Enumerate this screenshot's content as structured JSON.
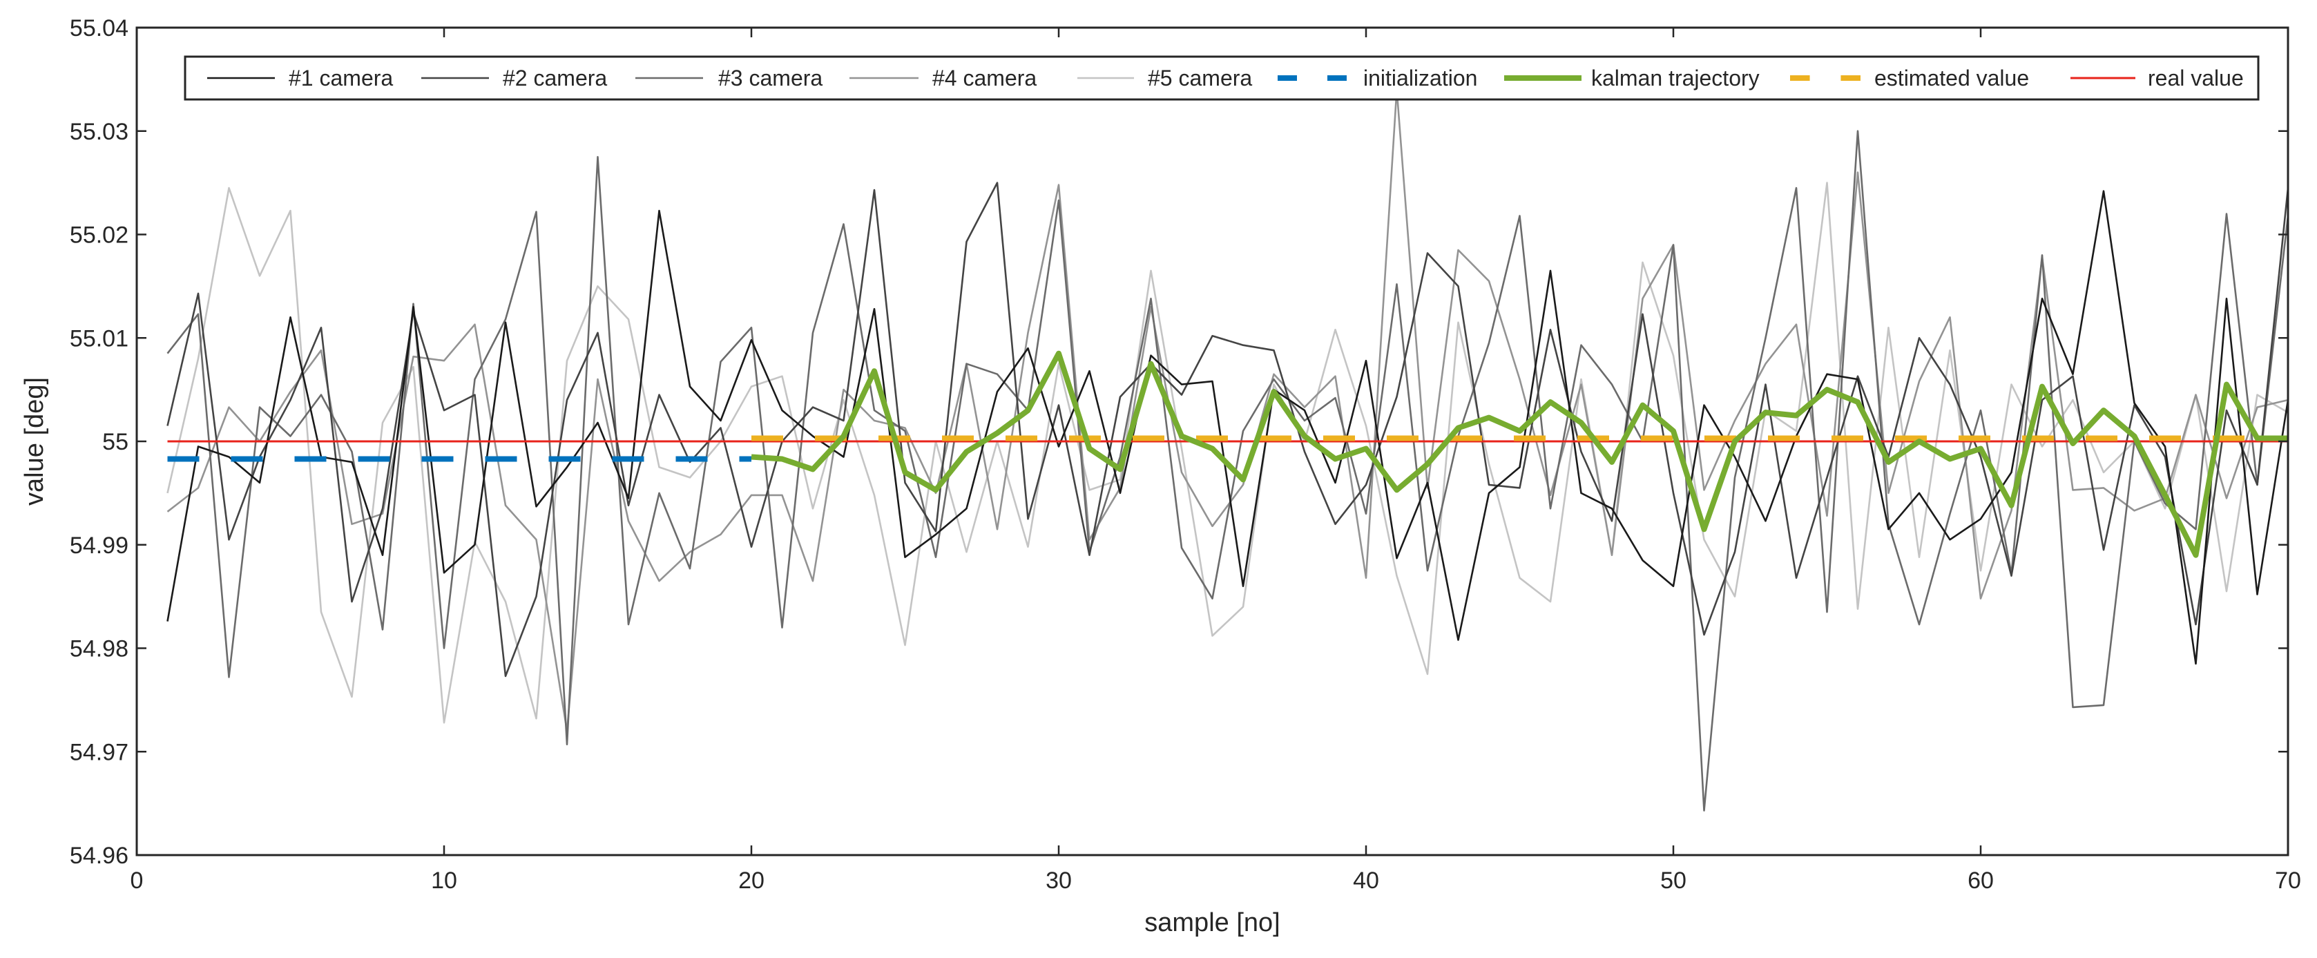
{
  "chart_data": {
    "type": "line",
    "title": "",
    "xlabel": "sample [no]",
    "ylabel": "value [deg]",
    "xlim": [
      0,
      70
    ],
    "ylim": [
      54.96,
      55.04
    ],
    "xticks": [
      0,
      10,
      20,
      30,
      40,
      50,
      60,
      70
    ],
    "xtick_labels": [
      "0",
      "10",
      "20",
      "30",
      "40",
      "50",
      "60",
      "70"
    ],
    "yticks": [
      54.96,
      54.97,
      54.98,
      54.99,
      55.0,
      55.01,
      55.02,
      55.03,
      55.04
    ],
    "ytick_labels": [
      "54.96",
      "54.97",
      "54.98",
      "54.99",
      "55",
      "55.01",
      "55.02",
      "55.03",
      "55.04"
    ],
    "grid": false,
    "legend_position": "top",
    "series": [
      {
        "name": "#1 camera",
        "color": "#1a1a1a",
        "style": "solid",
        "x": [
          1,
          2,
          3,
          4,
          5,
          6,
          7,
          8,
          9,
          10,
          11,
          12,
          13,
          14,
          15,
          16,
          17,
          18,
          19,
          20,
          21,
          22,
          23,
          24,
          25,
          26,
          27,
          28,
          29,
          30,
          31,
          32,
          33,
          34,
          35,
          36,
          37,
          38,
          39,
          40,
          41,
          42,
          43,
          44,
          45,
          46,
          47,
          48,
          49,
          50,
          51,
          52,
          53,
          54,
          55,
          56,
          57,
          58,
          59,
          60,
          61,
          62,
          63,
          64,
          65,
          66,
          67,
          68,
          69,
          70
        ],
        "values": [
          54.9826,
          54.9995,
          54.9985,
          54.996,
          55.012,
          54.9985,
          54.998,
          54.989,
          55.013,
          54.9873,
          54.99,
          55.0115,
          54.9937,
          54.9975,
          55.0018,
          54.9945,
          55.0223,
          55.0053,
          55.002,
          55.0098,
          55.003,
          55.0005,
          54.9985,
          55.0128,
          54.9888,
          54.991,
          54.9935,
          55.0048,
          55.009,
          54.9995,
          55.0068,
          54.995,
          55.0083,
          55.0055,
          55.0058,
          54.986,
          55.005,
          55.003,
          54.996,
          55.0078,
          54.9887,
          54.996,
          54.9808,
          54.995,
          54.9975,
          55.0165,
          54.995,
          54.9935,
          54.9885,
          54.986,
          55.0035,
          54.9985,
          54.9923,
          55.0005,
          55.0065,
          55.006,
          54.9915,
          54.995,
          54.9905,
          54.9925,
          54.997,
          55.0138,
          55.0065,
          55.0242,
          55.0037,
          54.9995,
          54.9785,
          55.0138,
          54.9852,
          55.004
        ]
      },
      {
        "name": "#2 camera",
        "color": "#444444",
        "style": "solid",
        "x": [
          1,
          2,
          3,
          4,
          5,
          6,
          7,
          8,
          9,
          10,
          11,
          12,
          13,
          14,
          15,
          16,
          17,
          18,
          19,
          20,
          21,
          22,
          23,
          24,
          25,
          26,
          27,
          28,
          29,
          30,
          31,
          32,
          33,
          34,
          35,
          36,
          37,
          38,
          39,
          40,
          41,
          42,
          43,
          44,
          45,
          46,
          47,
          48,
          49,
          50,
          51,
          52,
          53,
          54,
          55,
          56,
          57,
          58,
          59,
          60,
          61,
          62,
          63,
          64,
          65,
          66,
          67,
          68,
          69,
          70
        ],
        "values": [
          55.0015,
          55.0143,
          54.9905,
          54.9985,
          55.004,
          55.011,
          54.9845,
          54.9935,
          55.0125,
          55.003,
          55.0045,
          54.9773,
          54.985,
          55.004,
          55.0105,
          54.9938,
          55.0045,
          54.998,
          55.0013,
          54.9898,
          55.0,
          55.0033,
          55.002,
          55.0243,
          54.996,
          54.9913,
          55.0193,
          55.025,
          54.9925,
          55.0035,
          54.989,
          55.0043,
          55.0075,
          55.0045,
          55.0102,
          55.0093,
          55.0088,
          54.999,
          54.992,
          54.9958,
          55.0043,
          55.0182,
          55.015,
          54.9958,
          54.9955,
          55.0108,
          54.999,
          54.9923,
          55.0123,
          54.995,
          54.9813,
          54.9893,
          55.0055,
          54.9868,
          54.9965,
          55.0063,
          54.9985,
          55.01,
          55.0055,
          54.9985,
          54.987,
          55.004,
          55.0063,
          54.9895,
          55.0035,
          54.9985,
          54.9823,
          55.003,
          54.9958,
          55.0245
        ]
      },
      {
        "name": "#3 camera",
        "color": "#6b6b6b",
        "style": "solid",
        "x": [
          1,
          2,
          3,
          4,
          5,
          6,
          7,
          8,
          9,
          10,
          11,
          12,
          13,
          14,
          15,
          16,
          17,
          18,
          19,
          20,
          21,
          22,
          23,
          24,
          25,
          26,
          27,
          28,
          29,
          30,
          31,
          32,
          33,
          34,
          35,
          36,
          37,
          38,
          39,
          40,
          41,
          42,
          43,
          44,
          45,
          46,
          47,
          48,
          49,
          50,
          51,
          52,
          53,
          54,
          55,
          56,
          57,
          58,
          59,
          60,
          61,
          62,
          63,
          64,
          65,
          66,
          67,
          68,
          69,
          70
        ],
        "values": [
          55.0085,
          55.0123,
          54.9772,
          55.0033,
          55.0005,
          55.0045,
          54.999,
          54.9818,
          55.0133,
          54.98,
          55.006,
          55.0118,
          55.0222,
          54.9707,
          55.0275,
          54.9823,
          54.995,
          54.9877,
          55.0077,
          55.011,
          54.982,
          55.0105,
          55.021,
          55.003,
          55.001,
          54.9888,
          55.0075,
          55.0065,
          55.003,
          55.0233,
          54.9893,
          54.9985,
          55.0138,
          54.9897,
          54.9848,
          55.001,
          55.006,
          55.002,
          55.0042,
          54.993,
          55.0152,
          54.9875,
          55.0005,
          55.0095,
          55.0218,
          54.9935,
          55.0093,
          55.0055,
          55.0,
          55.019,
          54.9643,
          54.9965,
          55.01,
          55.0245,
          54.9835,
          55.03,
          54.992,
          54.9823,
          54.993,
          55.003,
          54.9872,
          55.018,
          54.9743,
          54.9745,
          55.0,
          54.994,
          54.9915,
          55.022,
          54.9958,
          55.0218
        ]
      },
      {
        "name": "#4 camera",
        "color": "#939393",
        "style": "solid",
        "x": [
          1,
          2,
          3,
          4,
          5,
          6,
          7,
          8,
          9,
          10,
          11,
          12,
          13,
          14,
          15,
          16,
          17,
          18,
          19,
          20,
          21,
          22,
          23,
          24,
          25,
          26,
          27,
          28,
          29,
          30,
          31,
          32,
          33,
          34,
          35,
          36,
          37,
          38,
          39,
          40,
          41,
          42,
          43,
          44,
          45,
          46,
          47,
          48,
          49,
          50,
          51,
          52,
          53,
          54,
          55,
          56,
          57,
          58,
          59,
          60,
          61,
          62,
          63,
          64,
          65,
          66,
          67,
          68,
          69,
          70
        ],
        "values": [
          54.9932,
          54.9955,
          55.0033,
          55.0,
          55.0048,
          55.0088,
          54.992,
          54.993,
          55.0082,
          55.0078,
          55.0113,
          54.9938,
          54.9905,
          54.972,
          55.006,
          54.9923,
          54.9865,
          54.9893,
          54.991,
          54.9948,
          54.9948,
          54.9865,
          55.005,
          55.002,
          55.0013,
          54.995,
          55.0075,
          54.9915,
          55.0105,
          55.0248,
          54.9905,
          54.9955,
          55.013,
          54.997,
          54.9918,
          54.9958,
          55.0065,
          55.0033,
          55.0063,
          54.9868,
          55.034,
          54.9955,
          55.0185,
          55.0155,
          55.006,
          54.9948,
          55.0055,
          54.989,
          55.0138,
          55.019,
          54.9953,
          55.002,
          55.0075,
          55.0113,
          54.9928,
          55.026,
          54.995,
          55.0058,
          55.012,
          54.9848,
          54.9933,
          55.0178,
          54.9953,
          54.9955,
          54.9933,
          54.9945,
          55.0045,
          54.9945,
          55.0033,
          55.004
        ]
      },
      {
        "name": "#5 camera",
        "color": "#c4c4c4",
        "style": "solid",
        "x": [
          1,
          2,
          3,
          4,
          5,
          6,
          7,
          8,
          9,
          10,
          11,
          12,
          13,
          14,
          15,
          16,
          17,
          18,
          19,
          20,
          21,
          22,
          23,
          24,
          25,
          26,
          27,
          28,
          29,
          30,
          31,
          32,
          33,
          34,
          35,
          36,
          37,
          38,
          39,
          40,
          41,
          42,
          43,
          44,
          45,
          46,
          47,
          48,
          49,
          50,
          51,
          52,
          53,
          54,
          55,
          56,
          57,
          58,
          59,
          60,
          61,
          62,
          63,
          64,
          65,
          66,
          67,
          68,
          69,
          70
        ],
        "values": [
          54.995,
          55.008,
          55.0245,
          55.016,
          55.0223,
          54.9835,
          54.9753,
          55.0018,
          55.0072,
          54.9728,
          54.9903,
          54.9845,
          54.9732,
          55.0078,
          55.015,
          55.0118,
          54.9975,
          54.9965,
          55.0,
          55.0053,
          55.0063,
          54.9935,
          55.004,
          54.9948,
          54.9803,
          55.0,
          54.9893,
          55.0,
          54.9898,
          55.0075,
          54.9953,
          54.9963,
          55.0165,
          54.9993,
          54.9812,
          54.984,
          55.0055,
          55.0,
          55.0108,
          55.0015,
          54.987,
          54.9775,
          55.0115,
          54.9978,
          54.9868,
          54.9845,
          55.006,
          54.989,
          55.0173,
          55.0083,
          54.9905,
          54.985,
          55.003,
          55.001,
          55.025,
          54.9838,
          55.011,
          54.9888,
          55.0088,
          54.9875,
          55.0055,
          54.9995,
          55.004,
          54.997,
          55.0,
          54.9935,
          55.0045,
          54.9855,
          55.0045,
          55.0028
        ]
      },
      {
        "name": "initialization",
        "color": "#0072bd",
        "style": "dashed",
        "x": [
          1,
          20
        ],
        "values": [
          54.9983,
          54.9983
        ]
      },
      {
        "name": "kalman trajectory",
        "color": "#77ac30",
        "style": "solid",
        "x": [
          20,
          21,
          22,
          23,
          24,
          25,
          26,
          27,
          28,
          29,
          30,
          31,
          32,
          33,
          34,
          35,
          36,
          37,
          38,
          39,
          40,
          41,
          42,
          43,
          44,
          45,
          46,
          47,
          48,
          49,
          50,
          51,
          52,
          53,
          54,
          55,
          56,
          57,
          58,
          59,
          60,
          61,
          62,
          63,
          64,
          65,
          66,
          67,
          68,
          69,
          70
        ],
        "values": [
          54.9985,
          54.9983,
          54.9973,
          55.0005,
          55.0068,
          54.997,
          54.9953,
          54.999,
          55.0008,
          55.003,
          55.0085,
          54.9993,
          54.9973,
          55.0075,
          55.0005,
          54.9993,
          54.9963,
          55.0048,
          55.0005,
          54.9983,
          54.9993,
          54.9953,
          54.9978,
          55.0013,
          55.0023,
          55.001,
          55.0038,
          55.0018,
          54.998,
          55.0035,
          55.001,
          54.9915,
          55.0,
          55.0028,
          55.0025,
          55.005,
          55.0038,
          54.998,
          55.0,
          54.9983,
          54.9993,
          54.9938,
          55.0053,
          54.9998,
          55.003,
          55.0005,
          54.9948,
          54.989,
          55.0055,
          55.0003,
          55.0003
        ]
      },
      {
        "name": "estimated value",
        "color": "#edb120",
        "style": "dashed",
        "x": [
          20,
          70
        ],
        "values": [
          55.0003,
          55.0003
        ]
      },
      {
        "name": "real value",
        "color": "#e8231b",
        "style": "solid",
        "x": [
          1,
          70
        ],
        "values": [
          55.0,
          55.0
        ]
      }
    ]
  }
}
